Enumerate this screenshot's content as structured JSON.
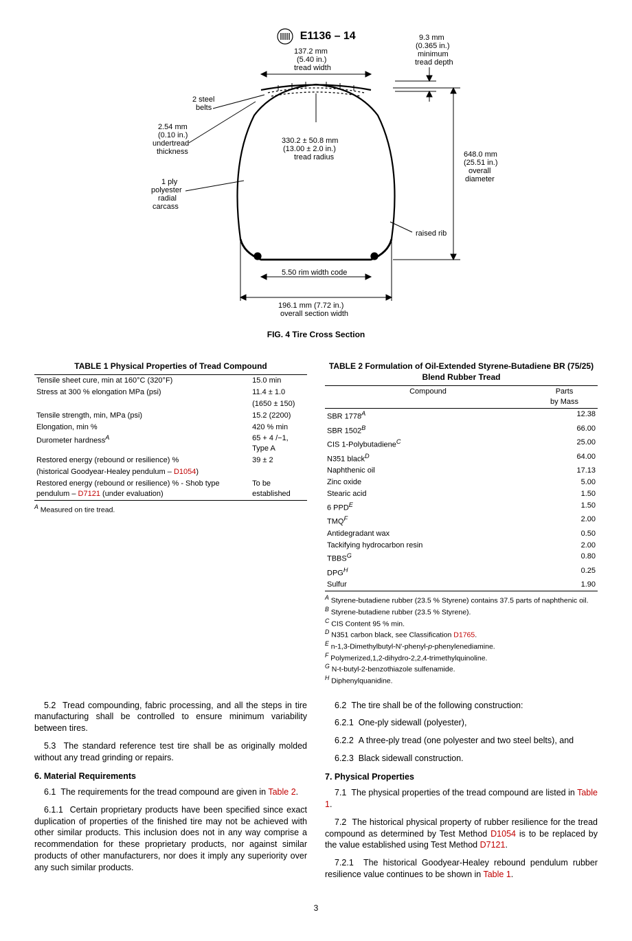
{
  "header": {
    "code": "E1136 – 14"
  },
  "figure": {
    "caption": "FIG. 4  Tire Cross Section",
    "labels": {
      "tread_width": "137.2 mm\n(5.40 in.)\ntread width",
      "tread_depth": "9.3 mm\n(0.365 in.)\nminimum\ntread depth",
      "steel_belts": "2 steel\nbelts",
      "undertread": "2.54 mm\n(0.10 in.)\nundertread\nthickness",
      "tread_radius": "330.2 ± 50.8 mm\n(13.00 ± 2.0 in.)\ntread radius",
      "overall_dia": "648.0 mm\n(25.51 in.)\noverall\ndiameter",
      "carcass": "1 ply\npolyester\nradial\ncarcass",
      "raised_rib": "raised rib",
      "rim": "5.50 rim width code",
      "section_width": "196.1 mm (7.72 in.)\noverall section width"
    }
  },
  "table1": {
    "title": "TABLE 1 Physical Properties of Tread Compound",
    "rows": [
      {
        "prop": "Tensile sheet cure, min at 160°C (320°F)",
        "val": "15.0 min"
      },
      {
        "prop": "Stress at 300 % elongation MPa (psi)",
        "val": "11.4 ± 1.0"
      },
      {
        "prop": "",
        "val": "(1650 ± 150)"
      },
      {
        "prop": "Tensile strength, min, MPa (psi)",
        "val": "15.2 (2200)"
      },
      {
        "prop": "Elongation, min %",
        "val": "420 % min"
      },
      {
        "prop": "Durometer hardness",
        "sup": "A",
        "val": "65 + 4 /−1, Type A"
      },
      {
        "prop": "Restored energy (rebound or resilience) %",
        "val": "39 ± 2"
      },
      {
        "prop_html": "(historical Goodyear-Healey pendulum – <span class='red-link'>D1054</span>)",
        "val": ""
      },
      {
        "prop_html": "Restored energy (rebound or resilience) % - Shob type pendulum – <span class='red-link'>D7121</span> (under evaluation)",
        "val": "To be established"
      }
    ],
    "footnote": "Measured on tire tread."
  },
  "table2": {
    "title": "TABLE 2 Formulation of Oil-Extended Styrene-Butadiene BR (75/25) Blend Rubber Tread",
    "col1": "Compound",
    "col2": "Parts\nby Mass",
    "rows": [
      {
        "name": "SBR 1778",
        "sup": "A",
        "val": "12.38"
      },
      {
        "name": "SBR 1502",
        "sup": "B",
        "val": "66.00"
      },
      {
        "name": "CIS 1-Polybutadiene",
        "sup": "C",
        "val": "25.00"
      },
      {
        "name": "N351 black",
        "sup": "D",
        "val": "64.00"
      },
      {
        "name": "Naphthenic oil",
        "val": "17.13"
      },
      {
        "name": "Zinc oxide",
        "val": "5.00"
      },
      {
        "name": "Stearic acid",
        "val": "1.50"
      },
      {
        "name": "6 PPD",
        "sup": "E",
        "val": "1.50"
      },
      {
        "name": "TMQ",
        "sup": "F",
        "val": "2.00"
      },
      {
        "name": "Antidegradant wax",
        "val": "0.50"
      },
      {
        "name": "Tackifying hydrocarbon resin",
        "val": "2.00"
      },
      {
        "name": "TBBS",
        "sup": "G",
        "val": "0.80"
      },
      {
        "name": "DPG",
        "sup": "H",
        "val": "0.25"
      },
      {
        "name": "Sulfur",
        "val": "1.90"
      }
    ],
    "footnotes": [
      {
        "sup": "A",
        "text": "Styrene-butadiene rubber (23.5 % Styrene) contains 37.5 parts of naphthenic oil."
      },
      {
        "sup": "B",
        "text": "Styrene-butadiene rubber (23.5 % Styrene)."
      },
      {
        "sup": "C",
        "text": "CIS Content 95 % min."
      },
      {
        "sup": "D",
        "text_html": "N351 carbon black, see Classification <span class='red-link'>D1765</span>."
      },
      {
        "sup": "E",
        "text_html": "n-1,3-Dimethylbutyl-N'-phenyl-<span class='italic'>p</span>-phenylenediamine."
      },
      {
        "sup": "F",
        "text": "Polymerized,1,2-dihydro-2,2,4-trimethylquinoline."
      },
      {
        "sup": "G",
        "text": "N-t-butyl-2-benzothiazole sulfenamide."
      },
      {
        "sup": "H",
        "text": "Diphenylquanidine."
      }
    ]
  },
  "body": {
    "p52": "Tread compounding, fabric processing, and all the steps in tire manufacturing shall be controlled to ensure minimum variability between tires.",
    "p53": "The standard reference test tire shall be as originally molded without any tread grinding or repairs.",
    "h6": "6. Material Requirements",
    "p61_html": "The requirements for the tread compound are given in <span class='red-link'>Table 2</span>.",
    "p611": "Certain proprietary products have been specified since exact duplication of properties of the finished tire may not be achieved with other similar products. This inclusion does not in any way comprise a recommendation for these proprietary products, nor against similar products of other manufacturers, nor does it imply any superiority over any such similar products.",
    "p62": "The tire shall be of the following construction:",
    "p621": "One-ply sidewall (polyester),",
    "p622": "A three-ply tread (one polyester and two steel belts), and",
    "p623": "Black sidewall construction.",
    "h7": "7. Physical Properties",
    "p71_html": "The physical properties of the tread compound are listed in <span class='red-link'>Table 1</span>.",
    "p72_html": "The historical physical property of rubber resilience for the tread compound as determined by Test Method <span class='red-link'>D1054</span> is to be replaced by the value established using Test Method <span class='red-link'>D7121</span>.",
    "p721_html": "The historical Goodyear-Healey rebound pendulum rubber resilience value continues to be shown in <span class='red-link'>Table 1</span>."
  },
  "page_number": "3"
}
